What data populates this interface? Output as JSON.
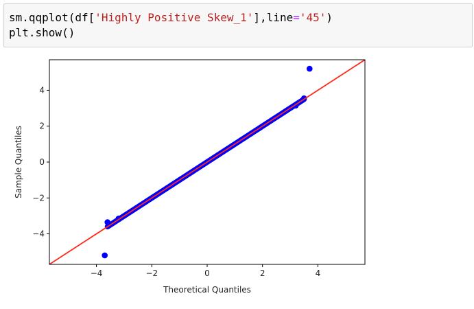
{
  "code_cell": {
    "line1": {
      "prefix": "sm.qqplot(df[",
      "string1": "'Highly Positive Skew_1'",
      "middle": "],line",
      "operator": "=",
      "string2": "'45'",
      "suffix": ")"
    },
    "line2": "plt.show()"
  },
  "chart_data": {
    "type": "scatter",
    "xlabel": "Theoretical Quantiles",
    "ylabel": "Sample Quantiles",
    "xlim": [
      -5.7,
      5.7
    ],
    "ylim": [
      -5.7,
      5.7
    ],
    "xticks": [
      -4,
      -2,
      0,
      2,
      4
    ],
    "xtick_labels": [
      "−4",
      "−2",
      "0",
      "2",
      "4"
    ],
    "yticks": [
      -4,
      -2,
      0,
      2,
      4
    ],
    "ytick_labels": [
      "−4",
      "−2",
      "0",
      "2",
      "4"
    ],
    "grid": false,
    "points": {
      "color": "#0000ff",
      "band": {
        "x_start": -3.6,
        "x_end": 3.5,
        "slope": 1.0
      },
      "outliers": [
        [
          -3.7,
          -5.2
        ],
        [
          3.7,
          5.2
        ],
        [
          -3.6,
          -3.35
        ],
        [
          3.5,
          3.55
        ],
        [
          -3.2,
          -3.15
        ],
        [
          3.2,
          3.15
        ]
      ]
    },
    "reference_line": {
      "label": "45",
      "slope": 1,
      "intercept": 0,
      "color": "#ff2a1a"
    }
  }
}
